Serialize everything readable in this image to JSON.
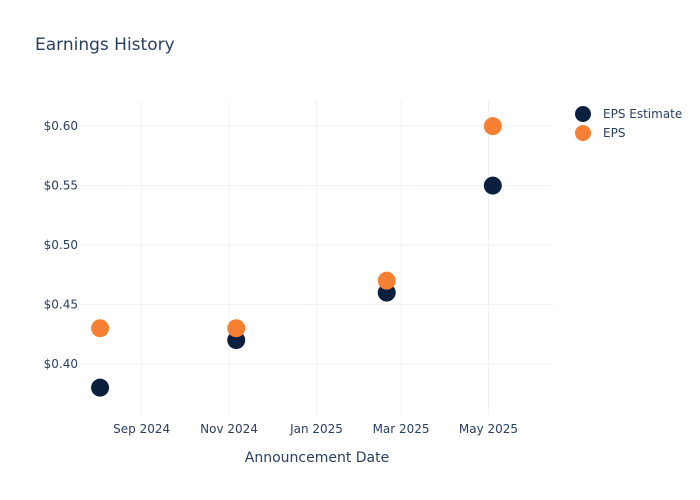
{
  "chart_data": {
    "type": "scatter",
    "title": "Earnings History",
    "xlabel": "Announcement Date",
    "ylabel": "",
    "x_ticks": [
      "2024-09-01",
      "2024-11-01",
      "2025-01-01",
      "2025-03-01",
      "2025-05-01"
    ],
    "x_tick_labels": [
      "Sep 2024",
      "Nov 2024",
      "Jan 2025",
      "Mar 2025",
      "May 2025"
    ],
    "xlim": [
      "2024-07-20",
      "2025-06-15"
    ],
    "y_ticks": [
      0.4,
      0.45,
      0.5,
      0.55,
      0.6
    ],
    "y_tick_labels": [
      "$0.40",
      "$0.45",
      "$0.50",
      "$0.55",
      "$0.60"
    ],
    "ylim": [
      0.357,
      0.622
    ],
    "grid": true,
    "legend_position": "top-right",
    "series": [
      {
        "name": "EPS Estimate",
        "color": "#0b1f3f",
        "points": [
          {
            "x": "2024-08-03",
            "y": 0.38
          },
          {
            "x": "2024-11-06",
            "y": 0.42
          },
          {
            "x": "2025-02-19",
            "y": 0.46
          },
          {
            "x": "2025-05-04",
            "y": 0.55
          }
        ]
      },
      {
        "name": "EPS",
        "color": "#f58034",
        "points": [
          {
            "x": "2024-08-03",
            "y": 0.43
          },
          {
            "x": "2024-11-06",
            "y": 0.43
          },
          {
            "x": "2025-02-19",
            "y": 0.47
          },
          {
            "x": "2025-05-04",
            "y": 0.6
          }
        ]
      }
    ]
  }
}
